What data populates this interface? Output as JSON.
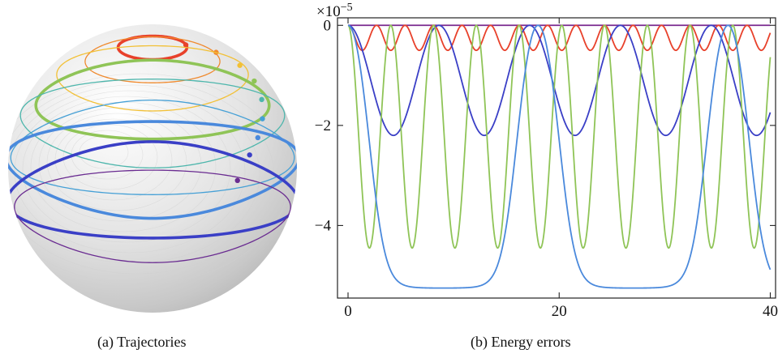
{
  "captions": {
    "a": "(a) Trajectories",
    "b": "(b) Energy errors"
  },
  "chart_data": [
    {
      "type": "sphere-trajectories",
      "title": "",
      "curves": [
        {
          "color": "#e8412b",
          "level": 0.97,
          "thick": true,
          "marker": true
        },
        {
          "color": "#f08a2e",
          "level": 0.88,
          "thick": false,
          "marker": true
        },
        {
          "color": "#f2c035",
          "level": 0.74,
          "thick": false,
          "marker": true
        },
        {
          "color": "#8fc457",
          "level": 0.58,
          "thick": true,
          "marker": true
        },
        {
          "color": "#4db6ac",
          "level": 0.4,
          "thick": false,
          "marker": true
        },
        {
          "color": "#45a0d6",
          "level": 0.22,
          "thick": false,
          "marker": true
        },
        {
          "color": "#4a89dc",
          "level": 0.05,
          "thick": true,
          "marker": true
        },
        {
          "color": "#3a3fc6",
          "level": -0.1,
          "thick": true,
          "marker": true
        },
        {
          "color": "#6a2c91",
          "level": -0.3,
          "thick": false,
          "marker": true
        }
      ]
    },
    {
      "type": "line",
      "title": "",
      "xlabel": "",
      "ylabel": "",
      "y_multiplier_label": "×10",
      "y_multiplier_exp": "−5",
      "xlim": [
        -1,
        40.5
      ],
      "ylim": [
        -5.45,
        0.15
      ],
      "xticks": [
        0,
        20,
        40
      ],
      "xtick_labels": [
        "0",
        "20",
        "40"
      ],
      "yticks": [
        0,
        -2,
        -4
      ],
      "ytick_labels": [
        "0",
        "−2",
        "−4"
      ],
      "series": [
        {
          "color": "#7a2a8f",
          "amplitude": 0.0,
          "period": 40,
          "shape": "flat"
        },
        {
          "color": "#e8412b",
          "amplitude": 0.5,
          "period": 2.7,
          "shape": "smooth"
        },
        {
          "color": "#3a3fc6",
          "amplitude": 2.2,
          "period": 8.6,
          "shape": "smooth"
        },
        {
          "color": "#8fc457",
          "amplitude": 4.45,
          "period": 4.05,
          "shape": "smooth"
        },
        {
          "color": "#4a89dc",
          "amplitude": 5.25,
          "period": 18.0,
          "shape": "plateau"
        }
      ]
    }
  ]
}
